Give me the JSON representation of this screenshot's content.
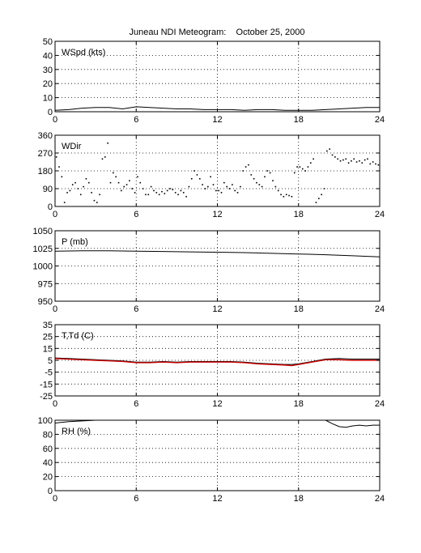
{
  "figure": {
    "title": "Juneau NDI Meteogram:    October 25, 2000"
  },
  "chart_data": [
    {
      "type": "line",
      "label": "WSpd (kts)",
      "x_ticks": [
        0,
        6,
        12,
        18,
        24
      ],
      "y_ticks": [
        0,
        10,
        20,
        30,
        40,
        50
      ],
      "xlim": [
        0,
        24
      ],
      "ylim": [
        0,
        50
      ],
      "grid": true,
      "series": [
        {
          "color": "#000000",
          "x": [
            0,
            1,
            2,
            3,
            4,
            5,
            6,
            7,
            8,
            9,
            10,
            11,
            12,
            13,
            14,
            15,
            16,
            17,
            18,
            19,
            20,
            21,
            22,
            23,
            24
          ],
          "y": [
            1,
            1.5,
            2.5,
            3,
            3,
            2,
            3.5,
            3,
            2.5,
            2,
            2,
            1.5,
            1.5,
            1.5,
            1,
            1.5,
            1.5,
            1,
            1,
            1,
            1.5,
            2,
            2.5,
            3,
            3
          ]
        }
      ]
    },
    {
      "type": "scatter",
      "label": "WDir",
      "x_ticks": [
        0,
        6,
        12,
        18,
        24
      ],
      "y_ticks": [
        0,
        90,
        180,
        270,
        360
      ],
      "xlim": [
        0,
        24
      ],
      "ylim": [
        0,
        360
      ],
      "grid": true,
      "series": [
        {
          "color": "#000000",
          "x": [
            0.1,
            0.3,
            0.5,
            0.7,
            0.9,
            1.1,
            1.3,
            1.5,
            1.7,
            1.9,
            2.1,
            2.3,
            2.5,
            2.7,
            2.9,
            3.1,
            3.3,
            3.5,
            3.7,
            3.9,
            4.1,
            4.3,
            4.5,
            4.7,
            4.9,
            5.1,
            5.3,
            5.5,
            5.7,
            5.9,
            6.1,
            6.3,
            6.5,
            6.7,
            6.9,
            7.1,
            7.3,
            7.5,
            7.7,
            7.9,
            8.1,
            8.3,
            8.5,
            8.7,
            8.9,
            9.1,
            9.3,
            9.5,
            9.7,
            9.9,
            10.1,
            10.3,
            10.5,
            10.7,
            10.9,
            11.1,
            11.3,
            11.5,
            11.7,
            11.9,
            12.1,
            12.3,
            12.5,
            12.7,
            12.9,
            13.1,
            13.3,
            13.5,
            13.7,
            13.9,
            14.1,
            14.3,
            14.5,
            14.7,
            14.9,
            15.1,
            15.3,
            15.5,
            15.7,
            15.9,
            16.1,
            16.3,
            16.5,
            16.7,
            16.9,
            17.1,
            17.3,
            17.5,
            17.7,
            17.9,
            18.1,
            18.3,
            18.5,
            18.7,
            18.9,
            19.1,
            19.3,
            19.5,
            19.7,
            19.9,
            20.1,
            20.3,
            20.5,
            20.7,
            20.9,
            21.1,
            21.3,
            21.5,
            21.7,
            21.9,
            22.1,
            22.3,
            22.5,
            22.7,
            22.9,
            23.1,
            23.3,
            23.5,
            23.7,
            23.9
          ],
          "y": [
            250,
            200,
            150,
            20,
            70,
            80,
            110,
            120,
            90,
            60,
            100,
            140,
            120,
            70,
            30,
            20,
            60,
            240,
            250,
            320,
            120,
            170,
            150,
            120,
            80,
            100,
            110,
            130,
            90,
            70,
            150,
            120,
            90,
            60,
            60,
            100,
            80,
            70,
            60,
            75,
            65,
            80,
            90,
            85,
            70,
            60,
            80,
            70,
            50,
            100,
            140,
            180,
            160,
            140,
            110,
            90,
            100,
            150,
            110,
            80,
            80,
            70,
            120,
            100,
            90,
            110,
            80,
            70,
            100,
            180,
            200,
            210,
            160,
            140,
            120,
            110,
            100,
            150,
            180,
            170,
            130,
            100,
            80,
            60,
            50,
            60,
            55,
            50,
            170,
            200,
            200,
            190,
            180,
            200,
            220,
            240,
            20,
            40,
            60,
            90,
            280,
            290,
            260,
            250,
            240,
            230,
            235,
            240,
            220,
            230,
            240,
            225,
            230,
            220,
            235,
            240,
            215,
            225,
            215,
            210
          ]
        }
      ]
    },
    {
      "type": "line",
      "label": "P (mb)",
      "x_ticks": [
        0,
        6,
        12,
        18,
        24
      ],
      "y_ticks": [
        950,
        975,
        1000,
        1025,
        1050
      ],
      "xlim": [
        0,
        24
      ],
      "ylim": [
        950,
        1050
      ],
      "grid": true,
      "series": [
        {
          "color": "#000000",
          "x": [
            0,
            2,
            4,
            6,
            8,
            10,
            12,
            14,
            16,
            18,
            20,
            22,
            24
          ],
          "y": [
            1021,
            1021.5,
            1021.5,
            1021,
            1020.5,
            1020,
            1019.5,
            1019,
            1018,
            1017,
            1016,
            1014.5,
            1013
          ]
        }
      ]
    },
    {
      "type": "line",
      "label": "T,Td (C)",
      "x_ticks": [
        0,
        6,
        12,
        18,
        24
      ],
      "y_ticks": [
        -25,
        -15,
        -5,
        5,
        15,
        25,
        35
      ],
      "xlim": [
        0,
        24
      ],
      "ylim": [
        -25,
        35
      ],
      "grid": true,
      "series": [
        {
          "color": "#000000",
          "x": [
            0,
            1,
            2,
            3,
            4,
            5,
            6,
            7,
            8,
            9,
            10,
            11,
            12,
            13,
            14,
            15,
            16,
            17,
            17.5,
            18,
            19,
            20,
            21,
            22,
            23,
            24
          ],
          "y": [
            7,
            6.5,
            6,
            5.5,
            5,
            4.5,
            3.5,
            3.5,
            4,
            3.5,
            4,
            4,
            4,
            4,
            3.5,
            2.5,
            2,
            1.5,
            1.5,
            2,
            4,
            6,
            6.5,
            6,
            6,
            6
          ]
        },
        {
          "color": "#cc0000",
          "x": [
            0,
            1,
            2,
            3,
            4,
            5,
            6,
            7,
            8,
            9,
            10,
            11,
            12,
            13,
            14,
            15,
            16,
            17,
            17.5,
            18,
            19,
            20,
            21,
            22,
            23,
            24
          ],
          "y": [
            6.5,
            6,
            5.5,
            5,
            4.5,
            4,
            3,
            3,
            3.5,
            3,
            3.5,
            3.5,
            3.5,
            3.5,
            3,
            2,
            1.5,
            1,
            0.5,
            1.5,
            3.5,
            5.5,
            5.5,
            5,
            5,
            5
          ]
        }
      ]
    },
    {
      "type": "line",
      "label": "RH (%)",
      "x_ticks": [
        0,
        6,
        12,
        18,
        24
      ],
      "y_ticks": [
        0,
        20,
        40,
        60,
        80,
        100
      ],
      "xlim": [
        0,
        24
      ],
      "ylim": [
        0,
        100
      ],
      "grid": true,
      "series": [
        {
          "color": "#000000",
          "x": [
            0,
            1,
            2,
            3,
            19,
            20,
            20.5,
            21,
            21.5,
            22,
            22.5,
            23,
            23.5,
            24
          ],
          "y": [
            96,
            98,
            99,
            100,
            100,
            100,
            95,
            91,
            90,
            92,
            93,
            92,
            93,
            93
          ]
        }
      ]
    }
  ]
}
